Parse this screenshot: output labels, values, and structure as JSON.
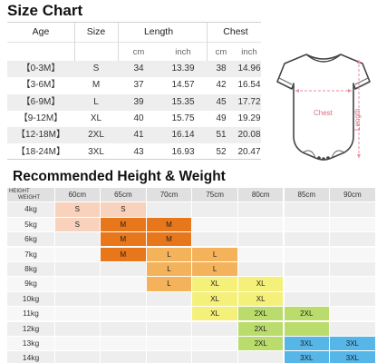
{
  "size_chart": {
    "title_part1": "Size ",
    "title_part2": "Chart",
    "headers": {
      "age": "Age",
      "size": "Size",
      "length": "Length",
      "chest": "Chest"
    },
    "units": {
      "length_cm": "cm",
      "length_inch": "inch",
      "chest_cm": "cm",
      "chest_inch": "inch"
    },
    "rows": [
      {
        "age": "【0-3M】",
        "size": "S",
        "length_cm": "34",
        "length_inch": "13.39",
        "chest_cm": "38",
        "chest_inch": "14.96"
      },
      {
        "age": "【3-6M】",
        "size": "M",
        "length_cm": "37",
        "length_inch": "14.57",
        "chest_cm": "42",
        "chest_inch": "16.54"
      },
      {
        "age": "【6-9M】",
        "size": "L",
        "length_cm": "39",
        "length_inch": "15.35",
        "chest_cm": "45",
        "chest_inch": "17.72"
      },
      {
        "age": "【9-12M】",
        "size": "XL",
        "length_cm": "40",
        "length_inch": "15.75",
        "chest_cm": "49",
        "chest_inch": "19.29"
      },
      {
        "age": "【12-18M】",
        "size": "2XL",
        "length_cm": "41",
        "length_inch": "16.14",
        "chest_cm": "51",
        "chest_inch": "20.08"
      },
      {
        "age": "【18-24M】",
        "size": "3XL",
        "length_cm": "43",
        "length_inch": "16.93",
        "chest_cm": "52",
        "chest_inch": "20.47"
      }
    ]
  },
  "diagram": {
    "chest_label": "Chest",
    "length_label": "Length",
    "accent_color": "#e88a9a"
  },
  "height_weight": {
    "title_part1": "Recommended Height & ",
    "title_part2": "Weight",
    "corner_top": "HEIGHT",
    "corner_bottom": "WEIGHT",
    "heights": [
      "60cm",
      "65cm",
      "70cm",
      "75cm",
      "80cm",
      "85cm",
      "90cm"
    ],
    "weights": [
      "4kg",
      "5kg",
      "6kg",
      "7kg",
      "8kg",
      "9kg",
      "10kg",
      "11kg",
      "12kg",
      "13kg",
      "14kg"
    ],
    "size_colors": {
      "S": "#f8d2bc",
      "M": "#e8761a",
      "L": "#f4b25a",
      "XL": "#f5f07a",
      "2XL": "#b9dc6c",
      "3XL": "#56b6e8"
    },
    "cells": [
      {
        "row": 0,
        "col": 0,
        "size": "S"
      },
      {
        "row": 0,
        "col": 1,
        "size": "S"
      },
      {
        "row": 1,
        "col": 0,
        "size": "S"
      },
      {
        "row": 1,
        "col": 1,
        "size": "M"
      },
      {
        "row": 1,
        "col": 2,
        "size": "M"
      },
      {
        "row": 2,
        "col": 1,
        "size": "M"
      },
      {
        "row": 2,
        "col": 2,
        "size": "M"
      },
      {
        "row": 3,
        "col": 1,
        "size": "M"
      },
      {
        "row": 3,
        "col": 2,
        "size": "L"
      },
      {
        "row": 3,
        "col": 3,
        "size": "L"
      },
      {
        "row": 4,
        "col": 2,
        "size": "L"
      },
      {
        "row": 4,
        "col": 3,
        "size": "L"
      },
      {
        "row": 5,
        "col": 2,
        "size": "L"
      },
      {
        "row": 5,
        "col": 3,
        "size": "XL"
      },
      {
        "row": 5,
        "col": 4,
        "size": "XL"
      },
      {
        "row": 6,
        "col": 3,
        "size": "XL"
      },
      {
        "row": 6,
        "col": 4,
        "size": "XL"
      },
      {
        "row": 7,
        "col": 3,
        "size": "XL"
      },
      {
        "row": 7,
        "col": 4,
        "size": "2XL"
      },
      {
        "row": 7,
        "col": 5,
        "size": "2XL"
      },
      {
        "row": 8,
        "col": 4,
        "size": "2XL"
      },
      {
        "row": 8,
        "col": 5,
        "size": ""
      },
      {
        "row": 9,
        "col": 4,
        "size": "2XL"
      },
      {
        "row": 9,
        "col": 5,
        "size": "3XL"
      },
      {
        "row": 9,
        "col": 6,
        "size": "3XL"
      },
      {
        "row": 10,
        "col": 5,
        "size": "3XL"
      },
      {
        "row": 10,
        "col": 6,
        "size": "3XL"
      }
    ]
  }
}
